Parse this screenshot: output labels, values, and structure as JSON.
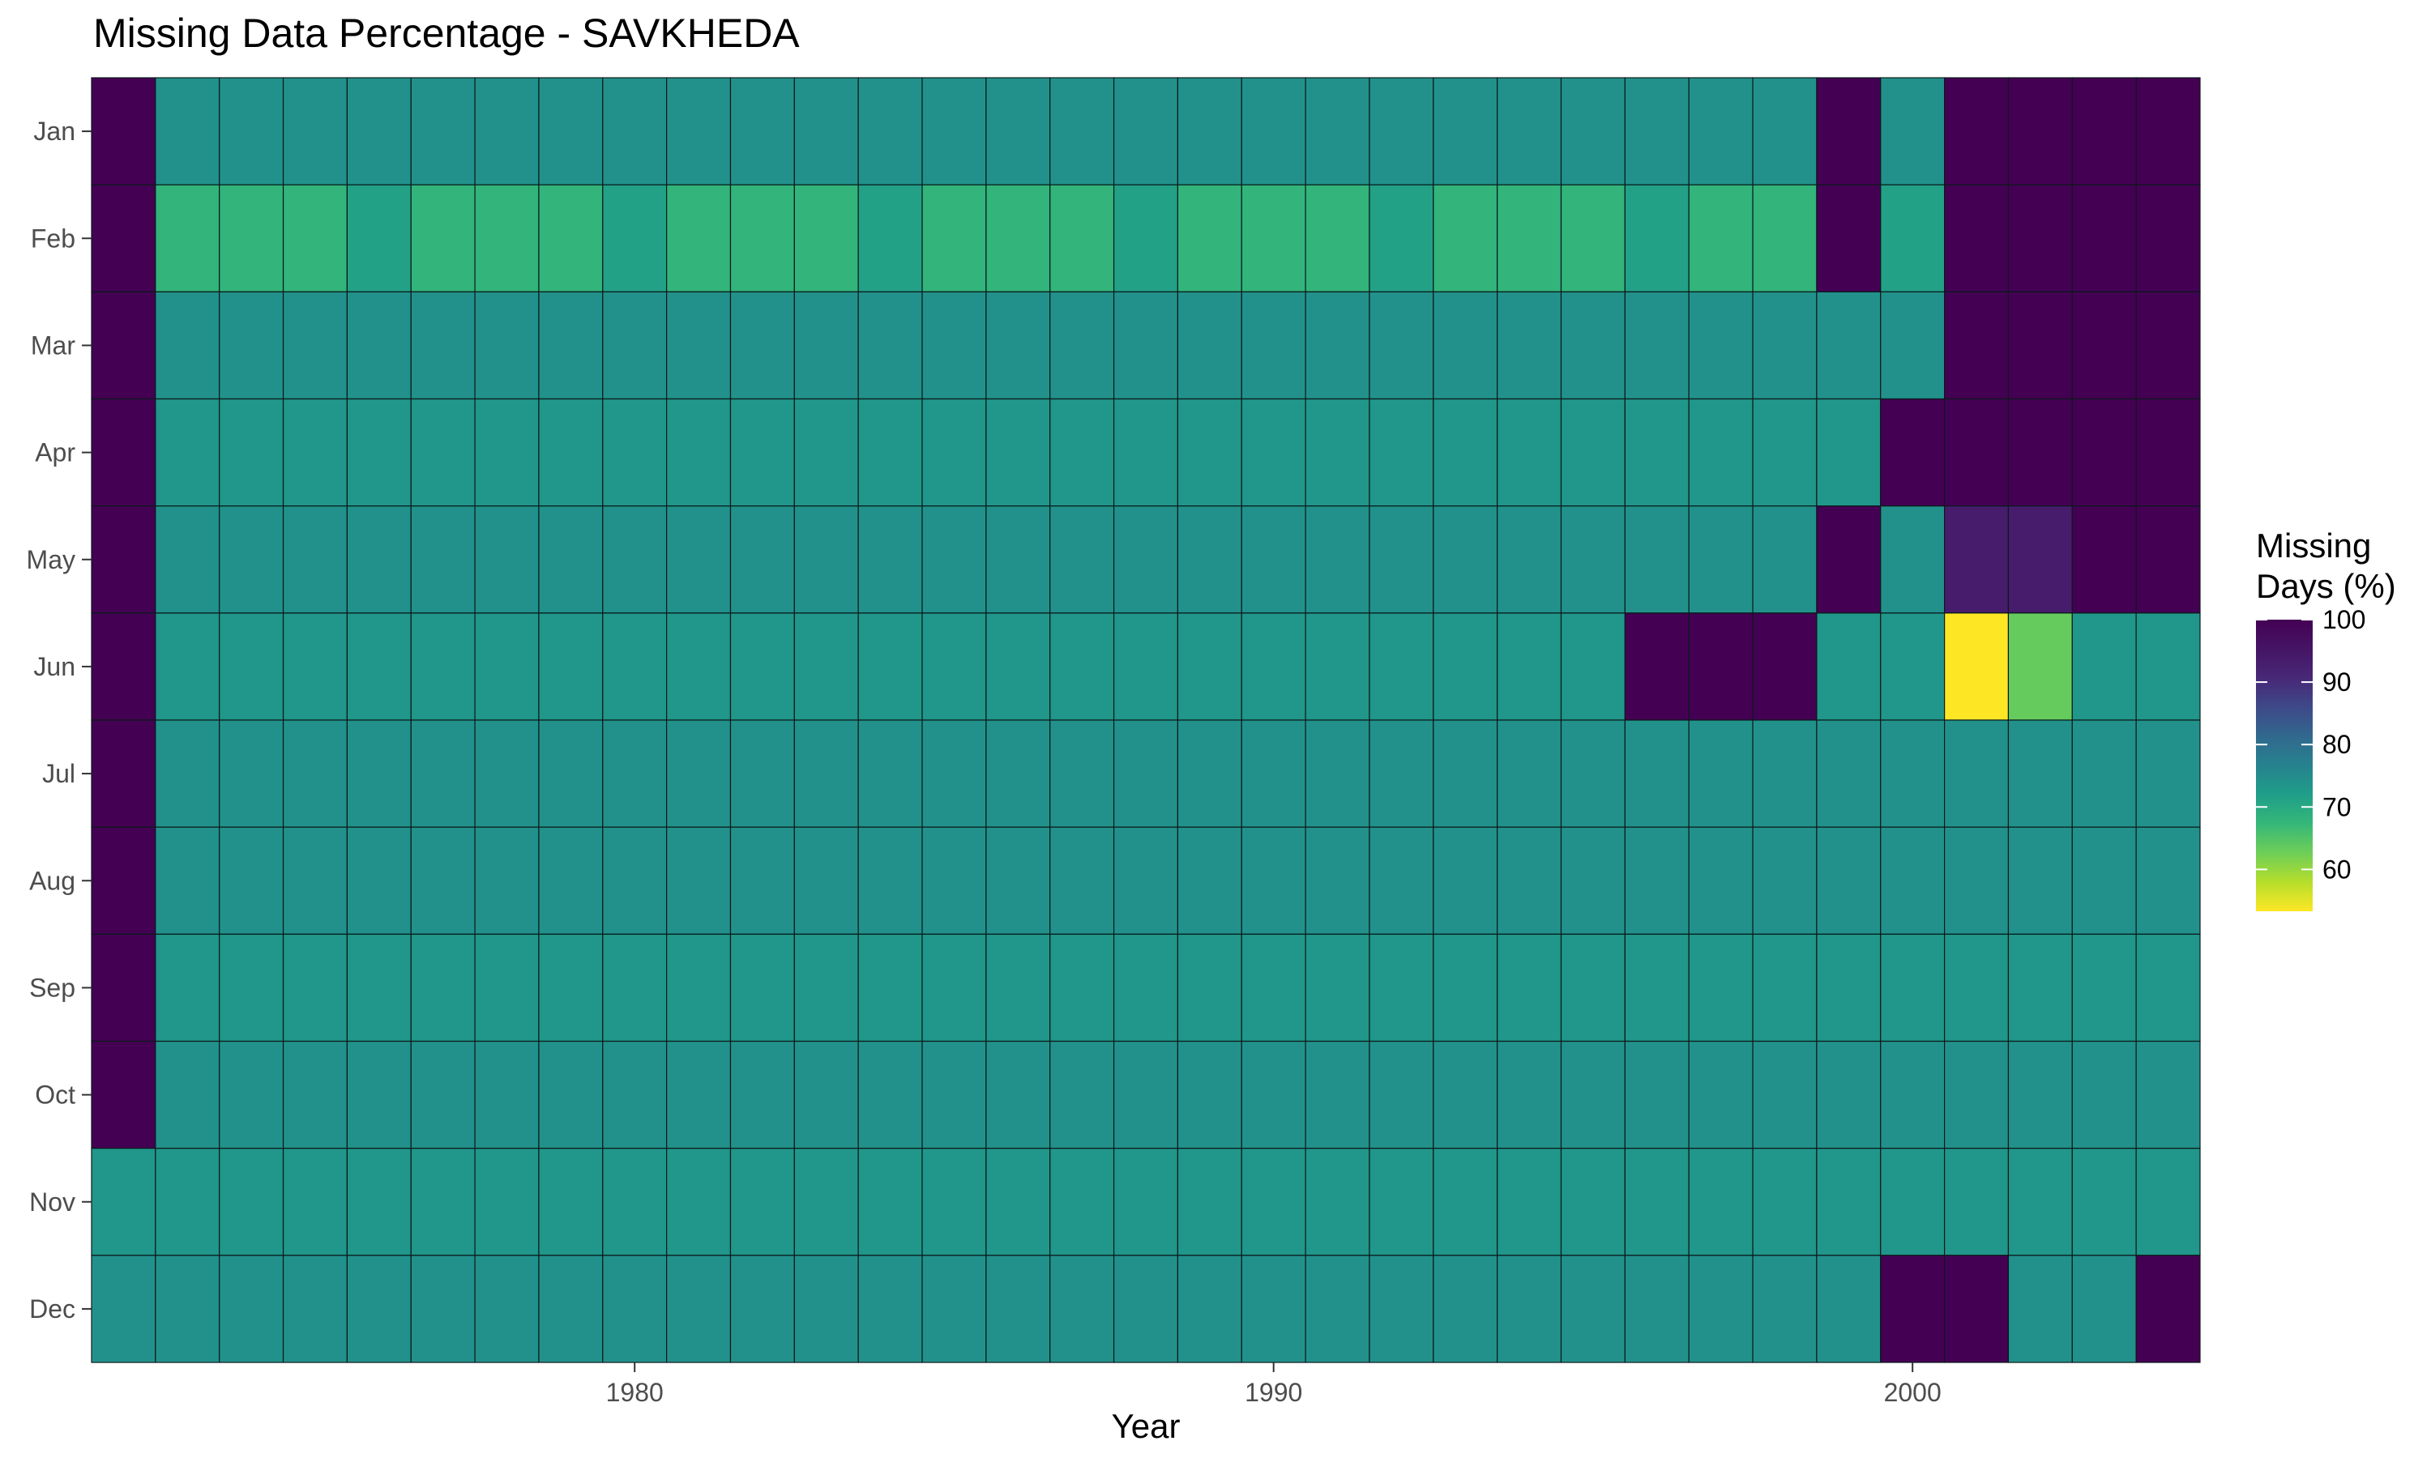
{
  "chart_data": {
    "type": "heatmap",
    "title": "Missing Data Percentage - SAVKHEDA",
    "xlabel": "Year",
    "ylabel": "",
    "x_years": [
      1972,
      1973,
      1974,
      1975,
      1976,
      1977,
      1978,
      1979,
      1980,
      1981,
      1982,
      1983,
      1984,
      1985,
      1986,
      1987,
      1988,
      1989,
      1990,
      1991,
      1992,
      1993,
      1994,
      1995,
      1996,
      1997,
      1998,
      1999,
      2000,
      2001,
      2002,
      2003,
      2004
    ],
    "x_ticks": [
      1980,
      1990,
      2000
    ],
    "months": [
      "Jan",
      "Feb",
      "Mar",
      "Apr",
      "May",
      "Jun",
      "Jul",
      "Aug",
      "Sep",
      "Oct",
      "Nov",
      "Dec"
    ],
    "values": [
      [
        100,
        74.2,
        74.2,
        74.2,
        74.2,
        74.2,
        74.2,
        74.2,
        74.2,
        74.2,
        74.2,
        74.2,
        74.2,
        74.2,
        74.2,
        74.2,
        74.2,
        74.2,
        74.2,
        74.2,
        74.2,
        74.2,
        74.2,
        74.2,
        74.2,
        74.2,
        74.2,
        100,
        74.2,
        100,
        100,
        100,
        100
      ],
      [
        100,
        67.9,
        67.9,
        67.9,
        71.4,
        67.9,
        67.9,
        67.9,
        71.4,
        67.9,
        67.9,
        67.9,
        71.4,
        67.9,
        67.9,
        67.9,
        71.4,
        67.9,
        67.9,
        67.9,
        71.4,
        67.9,
        67.9,
        67.9,
        71.4,
        67.9,
        67.9,
        100,
        71.4,
        100,
        100,
        100,
        100
      ],
      [
        100,
        74.2,
        74.2,
        74.2,
        74.2,
        74.2,
        74.2,
        74.2,
        74.2,
        74.2,
        74.2,
        74.2,
        74.2,
        74.2,
        74.2,
        74.2,
        74.2,
        74.2,
        74.2,
        74.2,
        74.2,
        74.2,
        74.2,
        74.2,
        74.2,
        74.2,
        74.2,
        74.2,
        74.2,
        100,
        100,
        100,
        100
      ],
      [
        100,
        73.3,
        73.3,
        73.3,
        73.3,
        73.3,
        73.3,
        73.3,
        73.3,
        73.3,
        73.3,
        73.3,
        73.3,
        73.3,
        73.3,
        73.3,
        73.3,
        73.3,
        73.3,
        73.3,
        73.3,
        73.3,
        73.3,
        73.3,
        73.3,
        73.3,
        73.3,
        73.3,
        100,
        100,
        100,
        100,
        100
      ],
      [
        100,
        74.2,
        74.2,
        74.2,
        74.2,
        74.2,
        74.2,
        74.2,
        74.2,
        74.2,
        74.2,
        74.2,
        74.2,
        74.2,
        74.2,
        74.2,
        74.2,
        74.2,
        74.2,
        74.2,
        74.2,
        74.2,
        74.2,
        74.2,
        74.2,
        74.2,
        74.2,
        100,
        74.2,
        93.5,
        93.5,
        100,
        100
      ],
      [
        100,
        73.3,
        73.3,
        73.3,
        73.3,
        73.3,
        73.3,
        73.3,
        73.3,
        73.3,
        73.3,
        73.3,
        73.3,
        73.3,
        73.3,
        73.3,
        73.3,
        73.3,
        73.3,
        73.3,
        73.3,
        73.3,
        73.3,
        73.3,
        100,
        100,
        100,
        73.3,
        73.3,
        53.3,
        63.3,
        73.3,
        73.3
      ],
      [
        100,
        74.2,
        74.2,
        74.2,
        74.2,
        74.2,
        74.2,
        74.2,
        74.2,
        74.2,
        74.2,
        74.2,
        74.2,
        74.2,
        74.2,
        74.2,
        74.2,
        74.2,
        74.2,
        74.2,
        74.2,
        74.2,
        74.2,
        74.2,
        74.2,
        74.2,
        74.2,
        74.2,
        74.2,
        74.2,
        74.2,
        74.2,
        74.2
      ],
      [
        100,
        74.2,
        74.2,
        74.2,
        74.2,
        74.2,
        74.2,
        74.2,
        74.2,
        74.2,
        74.2,
        74.2,
        74.2,
        74.2,
        74.2,
        74.2,
        74.2,
        74.2,
        74.2,
        74.2,
        74.2,
        74.2,
        74.2,
        74.2,
        74.2,
        74.2,
        74.2,
        74.2,
        74.2,
        74.2,
        74.2,
        74.2,
        74.2
      ],
      [
        100,
        73.3,
        73.3,
        73.3,
        73.3,
        73.3,
        73.3,
        73.3,
        73.3,
        73.3,
        73.3,
        73.3,
        73.3,
        73.3,
        73.3,
        73.3,
        73.3,
        73.3,
        73.3,
        73.3,
        73.3,
        73.3,
        73.3,
        73.3,
        73.3,
        73.3,
        73.3,
        73.3,
        73.3,
        73.3,
        73.3,
        73.3,
        73.3
      ],
      [
        100,
        74.2,
        74.2,
        74.2,
        74.2,
        74.2,
        74.2,
        74.2,
        74.2,
        74.2,
        74.2,
        74.2,
        74.2,
        74.2,
        74.2,
        74.2,
        74.2,
        74.2,
        74.2,
        74.2,
        74.2,
        74.2,
        74.2,
        74.2,
        74.2,
        74.2,
        74.2,
        74.2,
        74.2,
        74.2,
        74.2,
        74.2,
        74.2
      ],
      [
        73.3,
        73.3,
        73.3,
        73.3,
        73.3,
        73.3,
        73.3,
        73.3,
        73.3,
        73.3,
        73.3,
        73.3,
        73.3,
        73.3,
        73.3,
        73.3,
        73.3,
        73.3,
        73.3,
        73.3,
        73.3,
        73.3,
        73.3,
        73.3,
        73.3,
        73.3,
        73.3,
        73.3,
        73.3,
        73.3,
        73.3,
        73.3,
        73.3
      ],
      [
        74.2,
        74.2,
        74.2,
        74.2,
        74.2,
        74.2,
        74.2,
        74.2,
        74.2,
        74.2,
        74.2,
        74.2,
        74.2,
        74.2,
        74.2,
        74.2,
        74.2,
        74.2,
        74.2,
        74.2,
        74.2,
        74.2,
        74.2,
        74.2,
        74.2,
        74.2,
        74.2,
        74.2,
        100,
        100,
        74.2,
        74.2,
        100
      ]
    ],
    "legend": {
      "title_line1": "Missing",
      "title_line2": "Days (%)",
      "ticks": [
        100,
        90,
        80,
        70,
        60
      ],
      "range": [
        53.3,
        100
      ],
      "colormap": "viridis-reversed"
    },
    "grid": false
  }
}
